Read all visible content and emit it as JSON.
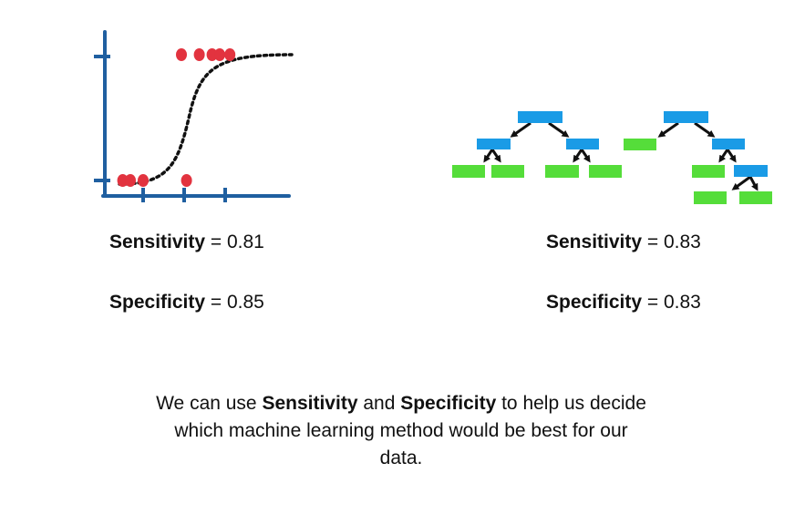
{
  "colors": {
    "axis": "#1f5fa0",
    "points": "#e2333f",
    "curve": "#111111",
    "tree_node": "#1a9be6",
    "tree_leaf": "#55dd3a",
    "tree_arrow": "#111111",
    "text": "#111111"
  },
  "left_graphic": {
    "icon": "logistic-regression-icon",
    "points": [
      {
        "x": 0.7,
        "y": 0
      },
      {
        "x": 1.0,
        "y": 0
      },
      {
        "x": 1.5,
        "y": 0
      },
      {
        "x": 3.0,
        "y": 1
      },
      {
        "x": 3.7,
        "y": 1
      },
      {
        "x": 4.2,
        "y": 1
      },
      {
        "x": 4.5,
        "y": 1
      },
      {
        "x": 4.9,
        "y": 1
      },
      {
        "x": 3.2,
        "y": 0
      }
    ]
  },
  "right_graphic": {
    "icon": "decision-tree-icons"
  },
  "left_metrics": {
    "sensitivity_label": "Sensitivity",
    "sensitivity_value": "= 0.81",
    "specificity_label": "Specificity",
    "specificity_value": "= 0.85"
  },
  "right_metrics": {
    "sensitivity_label": "Sensitivity",
    "sensitivity_value": "= 0.83",
    "specificity_label": "Specificity",
    "specificity_value": "= 0.83"
  },
  "caption": {
    "part1": "We can use ",
    "bold1": "Sensitivity",
    "part2": " and ",
    "bold2": "Specificity",
    "part3": " to help us decide which machine learning method would be best for our data."
  }
}
